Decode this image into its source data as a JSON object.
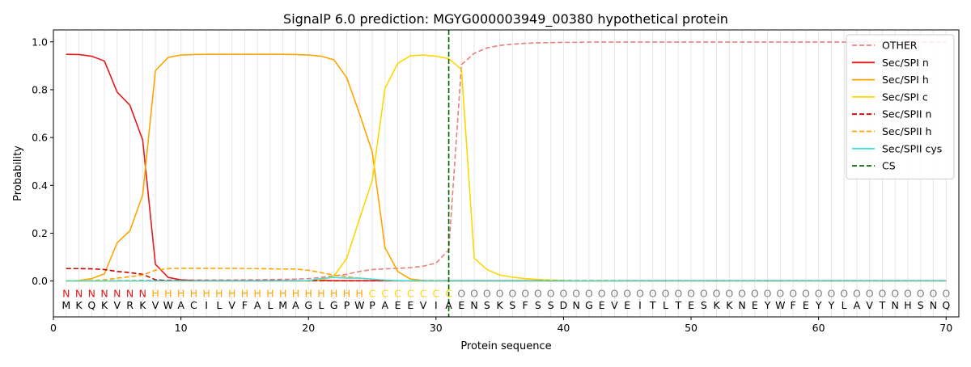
{
  "chart_data": {
    "type": "line",
    "title": "SignalP 6.0 prediction: MGYG000003949_00380 hypothetical protein",
    "xlabel": "Protein sequence",
    "ylabel": "Probability",
    "xlim": [
      0,
      71
    ],
    "ylim": [
      -0.15,
      1.05
    ],
    "x_ticks": [
      0,
      10,
      20,
      30,
      40,
      50,
      60,
      70
    ],
    "y_ticks": [
      0.0,
      0.2,
      0.4,
      0.6,
      0.8,
      1.0
    ],
    "x_tick_labels": [
      "0",
      "10",
      "20",
      "30",
      "40",
      "50",
      "60",
      "70"
    ],
    "y_tick_labels": [
      "0.0",
      "0.2",
      "0.4",
      "0.6",
      "0.8",
      "1.0"
    ],
    "grid": "vertical lines at each residue",
    "legend_position": "top-right",
    "sequence": "MKQKVRKVWACILVFALMAGLGPWPAEEVIAENSKSFSSDNGEVEITLTESKKNEYWFEYYLAVTNHSNQ",
    "region_labels": "NNNNNNNHHHHHHHHHHHHHHHHHCCCCCCCOOOOOOOOOOOOOOOOOOOOOOOOOOOOOOOOOOOOOOO",
    "region_colors": {
      "N": "#e41a1c",
      "H": "#ffa500",
      "C": "#ffd700",
      "O": "#808080"
    },
    "cleavage_site": 31,
    "series": [
      {
        "name": "OTHER",
        "color": "#e88080",
        "dash": "dashed",
        "values": [
          0.001,
          0.001,
          0.001,
          0.001,
          0.002,
          0.002,
          0.003,
          0.003,
          0.003,
          0.004,
          0.004,
          0.004,
          0.004,
          0.004,
          0.005,
          0.005,
          0.006,
          0.007,
          0.008,
          0.01,
          0.015,
          0.022,
          0.028,
          0.04,
          0.048,
          0.051,
          0.053,
          0.056,
          0.062,
          0.075,
          0.13,
          0.905,
          0.952,
          0.975,
          0.985,
          0.99,
          0.994,
          0.996,
          0.997,
          0.998,
          0.998,
          0.999,
          0.999,
          0.999,
          0.999,
          0.999,
          0.999,
          0.999,
          0.999,
          0.999,
          0.999,
          0.999,
          0.999,
          0.999,
          0.999,
          0.999,
          0.999,
          0.999,
          0.999,
          0.999,
          0.999,
          0.999,
          0.999,
          0.999,
          0.999,
          0.999,
          0.999,
          0.999,
          0.999,
          0.999
        ]
      },
      {
        "name": "Sec/SPI n",
        "color": "#e41a1c",
        "dash": "solid",
        "values": [
          0.948,
          0.947,
          0.94,
          0.92,
          0.79,
          0.735,
          0.59,
          0.07,
          0.015,
          0.005,
          0.002,
          0.001,
          0.001,
          0.001,
          0.001,
          0.001,
          0.001,
          0.001,
          0.001,
          0.001,
          0.002,
          0.001,
          0.001,
          0.001,
          0.001,
          0.001,
          0.001,
          0.001,
          0.001,
          0.001,
          0.001,
          0.001,
          0.001,
          0.001,
          0.001,
          0.001,
          0.001,
          0.001,
          0.001,
          0.001,
          0.001,
          0.001,
          0.001,
          0.001,
          0.001,
          0.001,
          0.001,
          0.001,
          0.001,
          0.001,
          0.001,
          0.001,
          0.001,
          0.001,
          0.001,
          0.001,
          0.001,
          0.001,
          0.001,
          0.001,
          0.001,
          0.001,
          0.001,
          0.001,
          0.001,
          0.001,
          0.001,
          0.001,
          0.001,
          0.001
        ]
      },
      {
        "name": "Sec/SPI h",
        "color": "#ffa500",
        "dash": "solid",
        "values": [
          0.0,
          0.002,
          0.01,
          0.03,
          0.16,
          0.21,
          0.36,
          0.88,
          0.935,
          0.945,
          0.947,
          0.948,
          0.948,
          0.948,
          0.948,
          0.948,
          0.948,
          0.948,
          0.947,
          0.945,
          0.94,
          0.925,
          0.85,
          0.7,
          0.54,
          0.14,
          0.04,
          0.008,
          0.002,
          0.001,
          0.0,
          0.0,
          0.0,
          0.0,
          0.0,
          0.0,
          0.0,
          0.0,
          0.0,
          0.0,
          0.0,
          0.0,
          0.0,
          0.0,
          0.0,
          0.0,
          0.0,
          0.0,
          0.0,
          0.0,
          0.0,
          0.0,
          0.0,
          0.0,
          0.0,
          0.0,
          0.0,
          0.0,
          0.0,
          0.0,
          0.0,
          0.0,
          0.0,
          0.0,
          0.0,
          0.0,
          0.0,
          0.0,
          0.0,
          0.0
        ]
      },
      {
        "name": "Sec/SPI c",
        "color": "#ffd700",
        "dash": "solid",
        "values": [
          0.0,
          0.0,
          0.0,
          0.0,
          0.0,
          0.0,
          0.0,
          0.0,
          0.0,
          0.0,
          0.0,
          0.0,
          0.0,
          0.0,
          0.0,
          0.0,
          0.0,
          0.0,
          0.0,
          0.0,
          0.004,
          0.02,
          0.095,
          0.26,
          0.42,
          0.805,
          0.91,
          0.942,
          0.945,
          0.94,
          0.93,
          0.885,
          0.095,
          0.048,
          0.025,
          0.016,
          0.01,
          0.006,
          0.004,
          0.002,
          0.001,
          0.001,
          0.001,
          0.001,
          0.0,
          0.0,
          0.0,
          0.0,
          0.0,
          0.0,
          0.0,
          0.0,
          0.0,
          0.0,
          0.0,
          0.0,
          0.0,
          0.0,
          0.0,
          0.0,
          0.0,
          0.0,
          0.0,
          0.0,
          0.0,
          0.0,
          0.0,
          0.0,
          0.0,
          0.0
        ]
      },
      {
        "name": "Sec/SPII n",
        "color": "#cc0000",
        "dash": "dashed",
        "values": [
          0.052,
          0.052,
          0.051,
          0.048,
          0.04,
          0.035,
          0.028,
          0.005,
          0.002,
          0.001,
          0.001,
          0.001,
          0.001,
          0.001,
          0.001,
          0.001,
          0.001,
          0.001,
          0.001,
          0.001,
          0.001,
          0.001,
          0.001,
          0.001,
          0.001,
          0.001,
          0.001,
          0.001,
          0.001,
          0.001,
          0.001,
          0.001,
          0.001,
          0.001,
          0.001,
          0.001,
          0.001,
          0.001,
          0.001,
          0.001,
          0.001,
          0.001,
          0.001,
          0.001,
          0.001,
          0.001,
          0.001,
          0.001,
          0.001,
          0.001,
          0.001,
          0.001,
          0.001,
          0.001,
          0.001,
          0.001,
          0.001,
          0.001,
          0.001,
          0.001,
          0.001,
          0.001,
          0.001,
          0.001,
          0.001,
          0.001,
          0.001,
          0.001,
          0.001,
          0.001
        ]
      },
      {
        "name": "Sec/SPII h",
        "color": "#ffa500",
        "dash": "dashed",
        "values": [
          0.0,
          0.0,
          0.002,
          0.005,
          0.012,
          0.018,
          0.025,
          0.045,
          0.052,
          0.053,
          0.053,
          0.053,
          0.053,
          0.053,
          0.052,
          0.052,
          0.051,
          0.05,
          0.05,
          0.045,
          0.035,
          0.025,
          0.018,
          0.012,
          0.008,
          0.003,
          0.001,
          0.001,
          0.0,
          0.0,
          0.0,
          0.0,
          0.0,
          0.0,
          0.0,
          0.0,
          0.0,
          0.0,
          0.0,
          0.0,
          0.0,
          0.0,
          0.0,
          0.0,
          0.0,
          0.0,
          0.0,
          0.0,
          0.0,
          0.0,
          0.0,
          0.0,
          0.0,
          0.0,
          0.0,
          0.0,
          0.0,
          0.0,
          0.0,
          0.0,
          0.0,
          0.0,
          0.0,
          0.0,
          0.0,
          0.0,
          0.0,
          0.0,
          0.0,
          0.0
        ]
      },
      {
        "name": "Sec/SPII cys",
        "color": "#40e0e0",
        "dash": "solid",
        "values": [
          0.0,
          0.0,
          0.0,
          0.0,
          0.0,
          0.0,
          0.0,
          0.0,
          0.0,
          0.0,
          0.0,
          0.0,
          0.0,
          0.0,
          0.0,
          0.0,
          0.0,
          0.0,
          0.0,
          0.002,
          0.01,
          0.015,
          0.012,
          0.012,
          0.008,
          0.004,
          0.002,
          0.001,
          0.0,
          0.0,
          0.0,
          0.0,
          0.0,
          0.0,
          0.0,
          0.0,
          0.0,
          0.0,
          0.0,
          0.0,
          0.0,
          0.0,
          0.0,
          0.0,
          0.0,
          0.0,
          0.0,
          0.0,
          0.0,
          0.0,
          0.0,
          0.0,
          0.0,
          0.0,
          0.0,
          0.0,
          0.0,
          0.0,
          0.0,
          0.0,
          0.0,
          0.0,
          0.0,
          0.0,
          0.0,
          0.0,
          0.0,
          0.0,
          0.0,
          0.0
        ]
      },
      {
        "name": "CS",
        "color": "#006400",
        "dash": "dashed",
        "values": []
      }
    ]
  }
}
